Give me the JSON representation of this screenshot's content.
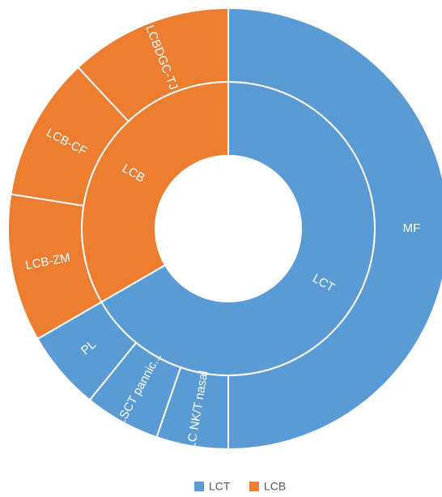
{
  "chart_data": {
    "type": "sunburst",
    "nodes": [
      {
        "name": "LCT",
        "value": 240,
        "color": "#5b9bd5",
        "children": [
          {
            "name": "MF",
            "value": 180
          },
          {
            "name": "LC NK/T nasal",
            "value": 19
          },
          {
            "name": "LSCT pannic...",
            "value": 20
          },
          {
            "name": "PL",
            "value": 21
          }
        ]
      },
      {
        "name": "LCB",
        "value": 120,
        "color": "#ed7d31",
        "children": [
          {
            "name": "LCB-ZM",
            "value": 39
          },
          {
            "name": "LCB-CF",
            "value": 38
          },
          {
            "name": "LCBDGC-TJ",
            "value": 43
          }
        ]
      }
    ],
    "legend": "bottom"
  }
}
